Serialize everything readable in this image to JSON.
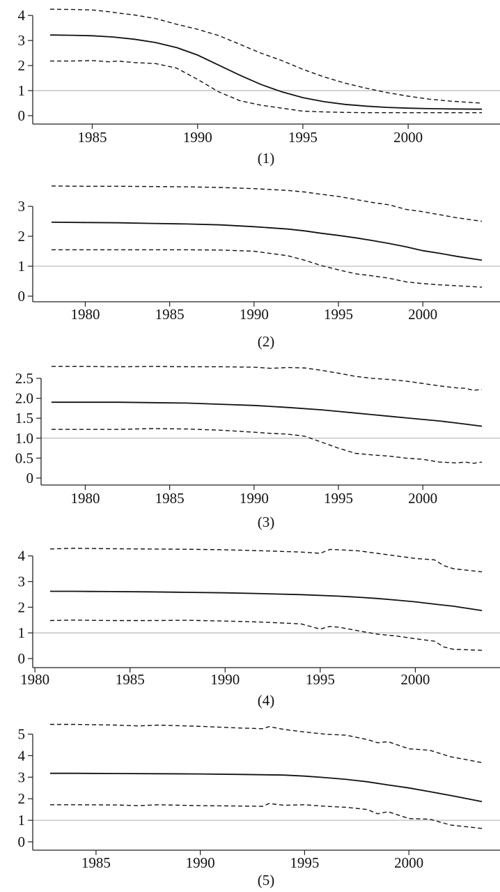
{
  "chart_data": [
    {
      "type": "line",
      "caption": "(1)",
      "reference_line": 1,
      "xlim": [
        1983,
        2003.5
      ],
      "ylim": [
        0,
        4.2
      ],
      "xticks": [
        1985,
        1990,
        1995,
        2000
      ],
      "yticks": [
        0,
        1,
        2,
        3,
        4
      ],
      "ytick_labels": [
        "0",
        "1",
        "2",
        "3",
        "4"
      ],
      "series": [
        {
          "style": "solid",
          "x": [
            1983,
            1984,
            1985,
            1986,
            1987,
            1988,
            1989,
            1990,
            1991,
            1992,
            1993,
            1994,
            1995,
            1996,
            1997,
            1998,
            1999,
            2000,
            2001,
            2002,
            2003.5
          ],
          "y": [
            3.22,
            3.21,
            3.19,
            3.14,
            3.05,
            2.92,
            2.72,
            2.42,
            2.02,
            1.62,
            1.25,
            0.95,
            0.72,
            0.56,
            0.45,
            0.38,
            0.33,
            0.3,
            0.28,
            0.27,
            0.26
          ]
        },
        {
          "style": "dashed",
          "x": [
            1983,
            1984,
            1985,
            1985.8,
            1986.2,
            1987,
            1988,
            1989,
            1990,
            1991,
            1992,
            1993,
            1994,
            1995,
            1996,
            1997,
            1998,
            1999,
            2000,
            2001,
            2002,
            2003.5
          ],
          "y": [
            4.25,
            4.24,
            4.22,
            4.15,
            4.1,
            4.02,
            3.88,
            3.65,
            3.45,
            3.2,
            2.85,
            2.5,
            2.2,
            1.85,
            1.55,
            1.3,
            1.1,
            0.92,
            0.78,
            0.66,
            0.58,
            0.5
          ]
        },
        {
          "style": "dashed",
          "x": [
            1983,
            1984,
            1985,
            1985.8,
            1986.2,
            1987,
            1988,
            1989,
            1990,
            1991,
            1992,
            1993,
            1994,
            1995,
            1996,
            1997,
            1998,
            1999,
            2000,
            2001,
            2002,
            2003.5
          ],
          "y": [
            2.18,
            2.18,
            2.2,
            2.15,
            2.18,
            2.12,
            2.08,
            1.9,
            1.45,
            0.95,
            0.6,
            0.42,
            0.3,
            0.18,
            0.15,
            0.13,
            0.12,
            0.12,
            0.12,
            0.12,
            0.12,
            0.12
          ]
        }
      ]
    },
    {
      "type": "line",
      "caption": "(2)",
      "reference_line": 1,
      "xlim": [
        1978,
        2003.5
      ],
      "ylim": [
        0,
        3.7
      ],
      "xticks": [
        1980,
        1985,
        1990,
        1995,
        2000
      ],
      "yticks": [
        0,
        1,
        2,
        3
      ],
      "ytick_labels": [
        "0",
        "1",
        "2",
        "3"
      ],
      "series": [
        {
          "style": "solid",
          "x": [
            1978,
            1980,
            1982,
            1984,
            1986,
            1988,
            1990,
            1992,
            1993,
            1994,
            1995,
            1996,
            1997,
            1998,
            1999,
            2000,
            2001,
            2002,
            2003.5
          ],
          "y": [
            2.47,
            2.46,
            2.45,
            2.43,
            2.41,
            2.38,
            2.32,
            2.24,
            2.18,
            2.1,
            2.03,
            1.95,
            1.86,
            1.76,
            1.65,
            1.52,
            1.43,
            1.33,
            1.2
          ]
        },
        {
          "style": "dashed",
          "x": [
            1978,
            1980,
            1982,
            1984,
            1986,
            1988,
            1990,
            1992,
            1993,
            1994,
            1995,
            1996,
            1997,
            1998,
            1999,
            2000,
            2001,
            2002,
            2003.5
          ],
          "y": [
            3.68,
            3.67,
            3.67,
            3.66,
            3.65,
            3.63,
            3.59,
            3.53,
            3.48,
            3.4,
            3.33,
            3.23,
            3.13,
            3.05,
            2.9,
            2.82,
            2.72,
            2.62,
            2.5
          ]
        },
        {
          "style": "dashed",
          "x": [
            1978,
            1980,
            1982,
            1984,
            1986,
            1988,
            1990,
            1992,
            1993,
            1994,
            1995,
            1996,
            1997,
            1998,
            1999,
            2000,
            2001,
            2002,
            2003.5
          ],
          "y": [
            1.55,
            1.55,
            1.55,
            1.55,
            1.55,
            1.54,
            1.5,
            1.35,
            1.2,
            1.02,
            0.88,
            0.75,
            0.68,
            0.6,
            0.48,
            0.42,
            0.38,
            0.35,
            0.3
          ]
        }
      ]
    },
    {
      "type": "line",
      "caption": "(3)",
      "reference_line": 1,
      "xlim": [
        1978,
        2003.5
      ],
      "ylim": [
        0,
        2.9
      ],
      "xticks": [
        1980,
        1985,
        1990,
        1995,
        2000
      ],
      "yticks": [
        0,
        0.5,
        1,
        1.5,
        2,
        2.5
      ],
      "ytick_labels": [
        "0",
        "0.5",
        "1.0",
        "1.5",
        "2.0",
        "2.5"
      ],
      "series": [
        {
          "style": "solid",
          "x": [
            1978,
            1980,
            1982,
            1984,
            1986,
            1988,
            1990,
            1992,
            1994,
            1995,
            1996,
            1997,
            1998,
            1999,
            2000,
            2001,
            2002,
            2003.5
          ],
          "y": [
            1.9,
            1.9,
            1.9,
            1.89,
            1.88,
            1.85,
            1.82,
            1.77,
            1.71,
            1.67,
            1.63,
            1.59,
            1.55,
            1.51,
            1.47,
            1.43,
            1.38,
            1.3
          ]
        },
        {
          "style": "dashed",
          "x": [
            1978,
            1980,
            1982,
            1984,
            1986,
            1988,
            1990,
            1991,
            1992,
            1993,
            1994,
            1995,
            1996,
            1997,
            1998,
            1999,
            2000,
            2001,
            2002,
            2002.5,
            2003,
            2003.5
          ],
          "y": [
            2.8,
            2.8,
            2.79,
            2.8,
            2.79,
            2.79,
            2.78,
            2.75,
            2.77,
            2.76,
            2.7,
            2.63,
            2.55,
            2.5,
            2.47,
            2.43,
            2.37,
            2.31,
            2.26,
            2.25,
            2.2,
            2.22
          ]
        },
        {
          "style": "dashed",
          "x": [
            1978,
            1980,
            1982,
            1984,
            1986,
            1988,
            1990,
            1991,
            1992,
            1993,
            1994,
            1995,
            1996,
            1997,
            1998,
            1999,
            2000,
            2001,
            2002,
            2002.5,
            2003,
            2003.5
          ],
          "y": [
            1.22,
            1.22,
            1.22,
            1.24,
            1.23,
            1.2,
            1.15,
            1.12,
            1.1,
            1.05,
            0.9,
            0.75,
            0.62,
            0.58,
            0.55,
            0.5,
            0.47,
            0.4,
            0.38,
            0.4,
            0.37,
            0.4
          ]
        }
      ]
    },
    {
      "type": "line",
      "caption": "(4)",
      "reference_line": 1,
      "xlim": [
        1980.8,
        2003.5
      ],
      "ylim": [
        0,
        4.4
      ],
      "xticks": [
        1980,
        1985,
        1990,
        1995,
        2000
      ],
      "yticks": [
        0,
        1,
        2,
        3,
        4
      ],
      "ytick_labels": [
        "0",
        "1",
        "2",
        "3",
        "4"
      ],
      "series": [
        {
          "style": "solid",
          "x": [
            1980.8,
            1982,
            1984,
            1986,
            1988,
            1990,
            1992,
            1994,
            1996,
            1997,
            1998,
            1999,
            2000,
            2001,
            2002,
            2003.5
          ],
          "y": [
            2.62,
            2.62,
            2.61,
            2.6,
            2.58,
            2.56,
            2.53,
            2.49,
            2.43,
            2.39,
            2.34,
            2.28,
            2.21,
            2.12,
            2.04,
            1.87
          ]
        },
        {
          "style": "dashed",
          "x": [
            1980.8,
            1982,
            1984,
            1986,
            1988,
            1990,
            1992,
            1994,
            1995,
            1995.5,
            1996,
            1997,
            1998,
            1999,
            2000,
            2001,
            2001.5,
            2002,
            2003.5
          ],
          "y": [
            4.27,
            4.3,
            4.28,
            4.27,
            4.26,
            4.24,
            4.2,
            4.15,
            4.1,
            4.25,
            4.24,
            4.2,
            4.1,
            4.0,
            3.9,
            3.85,
            3.62,
            3.5,
            3.38
          ]
        },
        {
          "style": "dashed",
          "x": [
            1980.8,
            1982,
            1984,
            1986,
            1988,
            1990,
            1992,
            1994,
            1995,
            1995.5,
            1996,
            1997,
            1998,
            1999,
            2000,
            2001,
            2001.5,
            2002,
            2003.5
          ],
          "y": [
            1.48,
            1.5,
            1.48,
            1.48,
            1.49,
            1.46,
            1.42,
            1.35,
            1.15,
            1.25,
            1.22,
            1.08,
            0.95,
            0.88,
            0.77,
            0.68,
            0.45,
            0.36,
            0.32
          ]
        }
      ]
    },
    {
      "type": "line",
      "caption": "(5)",
      "reference_line": 1,
      "xlim": [
        1982.8,
        2003.5
      ],
      "ylim": [
        0,
        5.5
      ],
      "xticks": [
        1985,
        1990,
        1995,
        2000
      ],
      "yticks": [
        0,
        1,
        2,
        3,
        4,
        5
      ],
      "ytick_labels": [
        "0",
        "1",
        "2",
        "3",
        "4",
        "5"
      ],
      "series": [
        {
          "style": "solid",
          "x": [
            1982.8,
            1984,
            1986,
            1988,
            1990,
            1992,
            1994,
            1995,
            1996,
            1997,
            1998,
            1999,
            2000,
            2001,
            2002,
            2003.5
          ],
          "y": [
            3.18,
            3.18,
            3.17,
            3.16,
            3.15,
            3.13,
            3.1,
            3.05,
            2.98,
            2.9,
            2.79,
            2.64,
            2.5,
            2.33,
            2.15,
            1.87
          ]
        },
        {
          "style": "dashed",
          "x": [
            1982.8,
            1984,
            1986,
            1987,
            1988,
            1990,
            1992,
            1993,
            1993.3,
            1994,
            1995,
            1996,
            1997,
            1998,
            1998.5,
            1999,
            2000,
            2001,
            2002,
            2003.5
          ],
          "y": [
            5.45,
            5.45,
            5.42,
            5.38,
            5.42,
            5.36,
            5.28,
            5.25,
            5.35,
            5.22,
            5.1,
            5.0,
            4.95,
            4.75,
            4.6,
            4.65,
            4.32,
            4.25,
            3.95,
            3.68
          ]
        },
        {
          "style": "dashed",
          "x": [
            1982.8,
            1984,
            1986,
            1987,
            1988,
            1990,
            1992,
            1993,
            1993.3,
            1994,
            1995,
            1996,
            1997,
            1998,
            1998.5,
            1999,
            2000,
            2001,
            2002,
            2003.5
          ],
          "y": [
            1.72,
            1.72,
            1.71,
            1.68,
            1.72,
            1.68,
            1.66,
            1.65,
            1.78,
            1.7,
            1.72,
            1.65,
            1.6,
            1.5,
            1.3,
            1.4,
            1.08,
            1.05,
            0.78,
            0.62
          ]
        }
      ]
    }
  ]
}
